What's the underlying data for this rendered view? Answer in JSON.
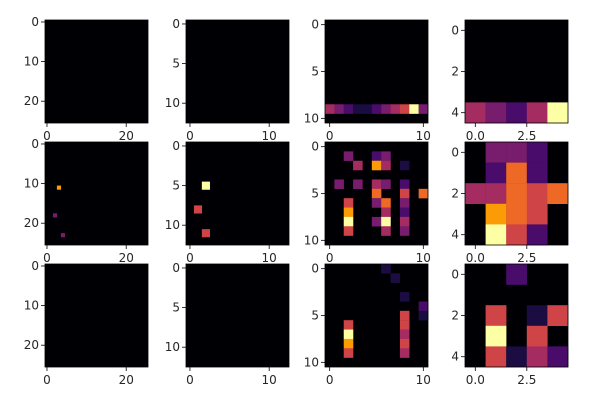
{
  "palette": {
    "background": "#000004",
    "low": "#1b0c41",
    "purple": "#4a0c6b",
    "magenta": "#781c6d",
    "red": "#a52c60",
    "orange_red": "#cf4446",
    "orange": "#ed6925",
    "amber": "#fb9b06",
    "yellow": "#f7d13d",
    "pale": "#fcffa4"
  },
  "chart_data": [
    {
      "type": "heatmap",
      "n": 26,
      "xticks": [
        0,
        20
      ],
      "yticks": [
        0,
        10,
        20
      ],
      "cells": []
    },
    {
      "type": "heatmap",
      "n": 13,
      "xticks": [
        0,
        10
      ],
      "yticks": [
        0,
        5,
        10
      ],
      "cells": []
    },
    {
      "type": "heatmap",
      "n": 11,
      "xticks": [
        0,
        10
      ],
      "yticks": [
        0,
        5,
        10
      ],
      "cells": [
        [
          0,
          9,
          "red"
        ],
        [
          1,
          9,
          "magenta"
        ],
        [
          2,
          9,
          "purple"
        ],
        [
          3,
          9,
          "low"
        ],
        [
          4,
          9,
          "low"
        ],
        [
          5,
          9,
          "purple"
        ],
        [
          6,
          9,
          "magenta"
        ],
        [
          7,
          9,
          "red"
        ],
        [
          8,
          9,
          "orange_red"
        ],
        [
          9,
          9,
          "pale"
        ],
        [
          10,
          9,
          "magenta"
        ]
      ]
    },
    {
      "type": "heatmap",
      "n": 5,
      "xticks": [
        0,
        2.5
      ],
      "xtick_labels": [
        "0.0",
        "2.5"
      ],
      "yticks": [
        0,
        2,
        4
      ],
      "cells": [
        [
          0,
          4,
          "red"
        ],
        [
          1,
          4,
          "magenta"
        ],
        [
          2,
          4,
          "purple"
        ],
        [
          3,
          4,
          "red"
        ],
        [
          4,
          4,
          "pale"
        ]
      ]
    },
    {
      "type": "heatmap",
      "n": 26,
      "xticks": [
        0,
        20
      ],
      "yticks": [
        0,
        10,
        20
      ],
      "cells": [
        [
          3,
          11,
          "amber"
        ],
        [
          2,
          18,
          "magenta"
        ],
        [
          4,
          23,
          "magenta"
        ]
      ]
    },
    {
      "type": "heatmap",
      "n": 13,
      "xticks": [
        0,
        10
      ],
      "yticks": [
        0,
        5,
        10
      ],
      "cells": [
        [
          2,
          5,
          "pale"
        ],
        [
          1,
          8,
          "orange_red"
        ],
        [
          2,
          11,
          "orange_red"
        ]
      ]
    },
    {
      "type": "heatmap",
      "n": 11,
      "xticks": [
        0,
        10
      ],
      "yticks": [
        0,
        5,
        10
      ],
      "cells": [
        [
          2,
          1,
          "magenta"
        ],
        [
          5,
          1,
          "purple"
        ],
        [
          6,
          1,
          "magenta"
        ],
        [
          3,
          2,
          "red"
        ],
        [
          5,
          2,
          "amber"
        ],
        [
          6,
          2,
          "red"
        ],
        [
          8,
          2,
          "low"
        ],
        [
          1,
          4,
          "magenta"
        ],
        [
          3,
          4,
          "magenta"
        ],
        [
          5,
          4,
          "red"
        ],
        [
          6,
          4,
          "magenta"
        ],
        [
          8,
          4,
          "purple"
        ],
        [
          5,
          5,
          "orange"
        ],
        [
          8,
          5,
          "orange_red"
        ],
        [
          10,
          5,
          "orange"
        ],
        [
          2,
          6,
          "orange_red"
        ],
        [
          5,
          6,
          "magenta"
        ],
        [
          6,
          6,
          "orange"
        ],
        [
          8,
          6,
          "magenta"
        ],
        [
          2,
          7,
          "amber"
        ],
        [
          6,
          7,
          "red"
        ],
        [
          8,
          7,
          "purple"
        ],
        [
          2,
          8,
          "pale"
        ],
        [
          5,
          8,
          "magenta"
        ],
        [
          6,
          8,
          "pale"
        ],
        [
          8,
          8,
          "red"
        ],
        [
          2,
          9,
          "orange_red"
        ],
        [
          6,
          9,
          "red"
        ],
        [
          8,
          9,
          "magenta"
        ]
      ]
    },
    {
      "type": "heatmap",
      "n": 5,
      "xticks": [
        0,
        2.5
      ],
      "xtick_labels": [
        "0.0",
        "2.5"
      ],
      "yticks": [
        0,
        2,
        4
      ],
      "cells": [
        [
          1,
          0,
          "magenta"
        ],
        [
          2,
          0,
          "magenta"
        ],
        [
          3,
          0,
          "purple"
        ],
        [
          1,
          1,
          "purple"
        ],
        [
          2,
          1,
          "orange"
        ],
        [
          3,
          1,
          "purple"
        ],
        [
          0,
          2,
          "red"
        ],
        [
          1,
          2,
          "red"
        ],
        [
          2,
          2,
          "orange"
        ],
        [
          3,
          2,
          "orange_red"
        ],
        [
          4,
          2,
          "orange"
        ],
        [
          1,
          3,
          "amber"
        ],
        [
          2,
          3,
          "orange"
        ],
        [
          3,
          3,
          "orange_red"
        ],
        [
          1,
          4,
          "pale"
        ],
        [
          2,
          4,
          "orange_red"
        ],
        [
          3,
          4,
          "purple"
        ]
      ]
    },
    {
      "type": "heatmap",
      "n": 26,
      "xticks": [
        0,
        20
      ],
      "yticks": [
        0,
        10,
        20
      ],
      "cells": []
    },
    {
      "type": "heatmap",
      "n": 13,
      "xticks": [
        0,
        10
      ],
      "yticks": [
        0,
        5,
        10
      ],
      "cells": []
    },
    {
      "type": "heatmap",
      "n": 11,
      "xticks": [
        0,
        10
      ],
      "yticks": [
        0,
        5,
        10
      ],
      "cells": [
        [
          6,
          0,
          "low"
        ],
        [
          7,
          1,
          "low"
        ],
        [
          8,
          3,
          "low"
        ],
        [
          10,
          4,
          "purple"
        ],
        [
          8,
          5,
          "orange_red"
        ],
        [
          10,
          5,
          "low"
        ],
        [
          2,
          6,
          "orange_red"
        ],
        [
          8,
          6,
          "orange_red"
        ],
        [
          2,
          7,
          "pale"
        ],
        [
          8,
          7,
          "red"
        ],
        [
          2,
          8,
          "amber"
        ],
        [
          8,
          8,
          "orange_red"
        ],
        [
          2,
          9,
          "orange_red"
        ],
        [
          8,
          9,
          "red"
        ]
      ]
    },
    {
      "type": "heatmap",
      "n": 5,
      "xticks": [
        0,
        2.5
      ],
      "xtick_labels": [
        "0.0",
        "2.5"
      ],
      "yticks": [
        0,
        2,
        4
      ],
      "cells": [
        [
          2,
          0,
          "purple"
        ],
        [
          1,
          2,
          "orange_red"
        ],
        [
          3,
          2,
          "low"
        ],
        [
          4,
          2,
          "orange_red"
        ],
        [
          1,
          3,
          "pale"
        ],
        [
          3,
          3,
          "orange_red"
        ],
        [
          1,
          4,
          "orange_red"
        ],
        [
          2,
          4,
          "low"
        ],
        [
          3,
          4,
          "red"
        ],
        [
          4,
          4,
          "purple"
        ]
      ]
    }
  ]
}
